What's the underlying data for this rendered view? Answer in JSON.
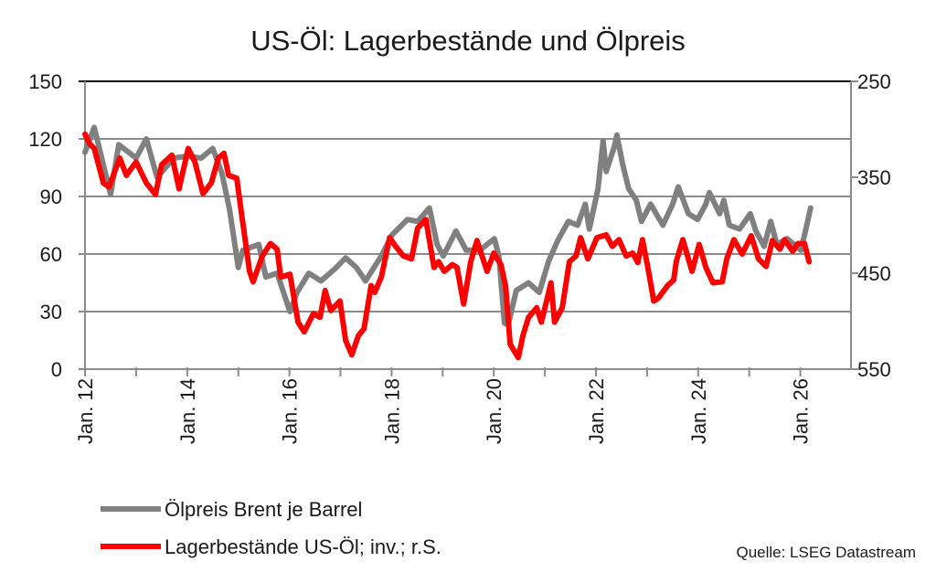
{
  "chart_data": {
    "type": "line",
    "title": "US-Öl: Lagerbestände und Ölpreis",
    "source": "Quelle: LSEG Datastream",
    "grid": true,
    "legend_position": "bottom-left",
    "x_axis": {
      "range": [
        2012,
        2027
      ],
      "tick_labels": [
        "Jan. 12",
        "Jan. 14",
        "Jan. 16",
        "Jan. 18",
        "Jan. 20",
        "Jan. 22",
        "Jan. 24",
        "Jan. 26"
      ],
      "tick_years": [
        2012,
        2014,
        2016,
        2018,
        2020,
        2022,
        2024,
        2026
      ]
    },
    "y_axis_left": {
      "range": [
        0,
        150
      ],
      "ticks": [
        "0",
        "30",
        "60",
        "90",
        "120",
        "150"
      ]
    },
    "y_axis_right": {
      "range": [
        250,
        550
      ],
      "inverted": true,
      "ticks": [
        "250",
        "350",
        "450",
        "550"
      ]
    },
    "series": [
      {
        "name": "Ölpreis Brent je Barrel",
        "axis": "left",
        "color": "#808080",
        "x": [
          2012.0,
          2012.18,
          2012.5,
          2012.66,
          2013.0,
          2013.2,
          2013.41,
          2013.74,
          2014.0,
          2014.27,
          2014.5,
          2014.68,
          2014.83,
          2015.0,
          2015.09,
          2015.4,
          2015.54,
          2015.76,
          2016.01,
          2016.15,
          2016.38,
          2016.62,
          2016.92,
          2017.1,
          2017.31,
          2017.49,
          2017.8,
          2018.01,
          2018.31,
          2018.51,
          2018.74,
          2018.89,
          2019.01,
          2019.26,
          2019.46,
          2019.73,
          2020.01,
          2020.1,
          2020.21,
          2020.28,
          2020.44,
          2020.68,
          2020.89,
          2021.07,
          2021.25,
          2021.46,
          2021.64,
          2021.79,
          2021.87,
          2022.04,
          2022.14,
          2022.2,
          2022.36,
          2022.41,
          2022.52,
          2022.64,
          2022.79,
          2022.89,
          2023.07,
          2023.31,
          2023.5,
          2023.61,
          2023.81,
          2023.99,
          2024.15,
          2024.22,
          2024.42,
          2024.5,
          2024.61,
          2024.81,
          2025.02,
          2025.13,
          2025.29,
          2025.42,
          2025.54,
          2025.74,
          2026.01,
          2026.1,
          2026.2
        ],
        "y": [
          113,
          126,
          91,
          117,
          110,
          120,
          100,
          110,
          111,
          110,
          115,
          102,
          83,
          53,
          62,
          65,
          48,
          50,
          30,
          40,
          50,
          46,
          53,
          58,
          53,
          46,
          59,
          70,
          78,
          77,
          84,
          65,
          59,
          72,
          62,
          62,
          68,
          59,
          24,
          23,
          41,
          45,
          40,
          56,
          67,
          77,
          75,
          86,
          73,
          94,
          119,
          103,
          116,
          122,
          107,
          94,
          88,
          77,
          86,
          75,
          86,
          95,
          81,
          78,
          86,
          92,
          81,
          88,
          75,
          73,
          81,
          72,
          64,
          77,
          65,
          68,
          62,
          72,
          84
        ]
      },
      {
        "name": "Lagerbestände US-Öl; inv.; r.S.",
        "axis": "right",
        "color": "#ff0000",
        "x": [
          2012.0,
          2012.09,
          2012.18,
          2012.36,
          2012.47,
          2012.68,
          2012.81,
          2013.0,
          2013.2,
          2013.38,
          2013.5,
          2013.7,
          2013.84,
          2014.02,
          2014.15,
          2014.31,
          2014.47,
          2014.61,
          2014.72,
          2014.81,
          2014.97,
          2015.06,
          2015.22,
          2015.29,
          2015.47,
          2015.63,
          2015.76,
          2015.83,
          2016.01,
          2016.17,
          2016.29,
          2016.47,
          2016.6,
          2016.7,
          2016.81,
          2016.99,
          2017.1,
          2017.22,
          2017.35,
          2017.46,
          2017.6,
          2017.67,
          2017.8,
          2017.96,
          2018.08,
          2018.23,
          2018.39,
          2018.51,
          2018.67,
          2018.83,
          2018.92,
          2019.03,
          2019.19,
          2019.28,
          2019.41,
          2019.55,
          2019.67,
          2019.87,
          2020.0,
          2020.14,
          2020.23,
          2020.32,
          2020.48,
          2020.57,
          2020.68,
          2020.84,
          2020.93,
          2021.02,
          2021.12,
          2021.19,
          2021.34,
          2021.48,
          2021.61,
          2021.7,
          2021.84,
          2022.02,
          2022.2,
          2022.32,
          2022.45,
          2022.59,
          2022.72,
          2022.82,
          2022.91,
          2023.04,
          2023.13,
          2023.22,
          2023.4,
          2023.52,
          2023.57,
          2023.7,
          2023.88,
          2024.02,
          2024.15,
          2024.29,
          2024.47,
          2024.56,
          2024.7,
          2024.86,
          2025.04,
          2025.18,
          2025.33,
          2025.45,
          2025.6,
          2025.69,
          2025.85,
          2025.95,
          2026.08,
          2026.17
        ],
        "y": [
          305,
          315,
          320,
          356,
          360,
          330,
          348,
          334,
          356,
          368,
          337,
          327,
          362,
          320,
          334,
          367,
          356,
          330,
          325,
          348,
          351,
          387,
          448,
          459,
          432,
          419,
          425,
          454,
          451,
          501,
          511,
          492,
          496,
          468,
          489,
          479,
          520,
          535,
          515,
          508,
          463,
          470,
          454,
          413,
          422,
          432,
          435,
          403,
          394,
          444,
          438,
          448,
          441,
          444,
          482,
          438,
          416,
          448,
          429,
          441,
          463,
          524,
          538,
          515,
          496,
          486,
          501,
          482,
          460,
          501,
          486,
          438,
          432,
          413,
          435,
          413,
          410,
          422,
          415,
          432,
          429,
          439,
          415,
          451,
          479,
          476,
          463,
          457,
          438,
          415,
          448,
          420,
          444,
          460,
          459,
          435,
          415,
          430,
          411,
          435,
          443,
          416,
          425,
          415,
          427,
          419,
          419,
          438
        ]
      }
    ]
  }
}
